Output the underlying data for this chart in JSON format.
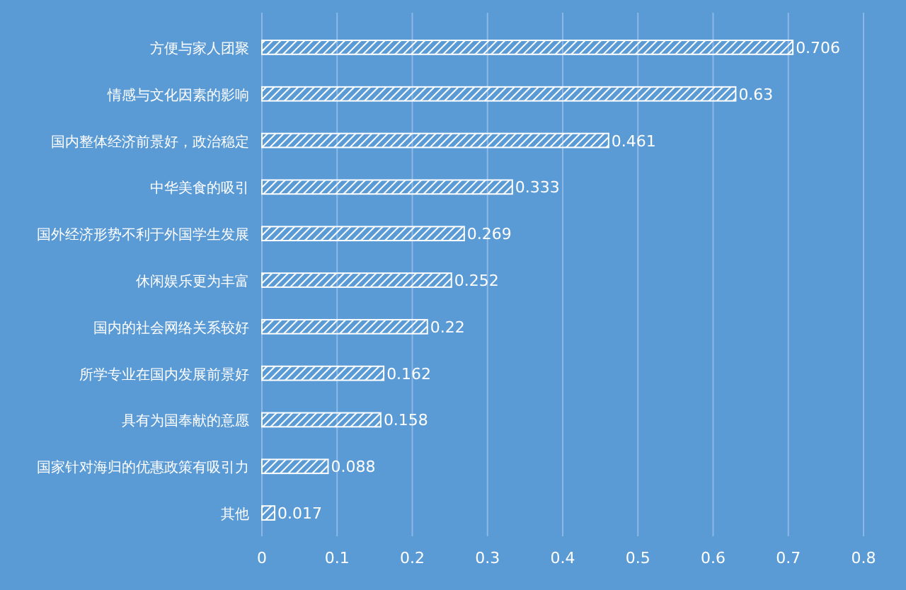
{
  "chart_data": {
    "type": "bar",
    "orientation": "horizontal",
    "categories": [
      "方便与家人团聚",
      "情感与文化因素的影响",
      "国内整体经济前景好，政治稳定",
      "中华美食的吸引",
      "国外经济形势不利于外国学生发展",
      "休闲娱乐更为丰富",
      "国内的社会网络关系较好",
      "所学专业在国内发展前景好",
      "具有为国奉献的意愿",
      "国家针对海归的优惠政策有吸引力",
      "其他"
    ],
    "values": [
      0.706,
      0.63,
      0.461,
      0.333,
      0.269,
      0.252,
      0.22,
      0.162,
      0.158,
      0.088,
      0.017
    ],
    "color": "#ffffff",
    "xlim": [
      0,
      0.8
    ],
    "xticks": [
      0,
      0.1,
      0.2,
      0.3,
      0.4,
      0.5,
      0.6,
      0.7,
      0.8
    ],
    "grid": "x",
    "data_labels": true
  }
}
